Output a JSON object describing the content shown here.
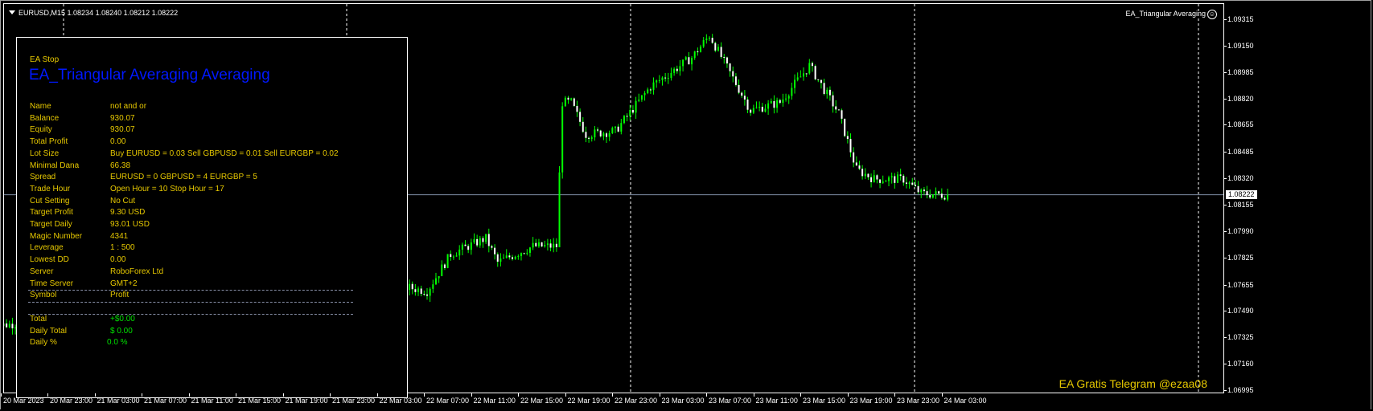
{
  "header": {
    "symbol": "EURUSD,M15",
    "ohlc": "1.08234 1.08240 1.08212 1.08222",
    "ea_name": "EA_Triangular Averaging",
    "ea_icon": "smiley-icon"
  },
  "panel": {
    "status": "EA Stop",
    "title": "EA_Triangular Averaging Averaging",
    "rows": [
      {
        "label": "Name",
        "value": "not and or"
      },
      {
        "label": "Balance",
        "value": "930.07"
      },
      {
        "label": "Equity",
        "value": "930.07"
      },
      {
        "label": "Total Profit",
        "value": "0.00"
      },
      {
        "label": "Lot Size",
        "value": "Buy EURUSD = 0.03    Sell GBPUSD = 0.01    Sell EURGBP = 0.02"
      },
      {
        "label": "Minimal Dana",
        "value": "66.38"
      },
      {
        "label": "Spread",
        "value": "EURUSD = 0   GBPUSD = 4   EURGBP = 5"
      },
      {
        "label": "Trade Hour",
        "value": "Open Hour = 10     Stop Hour = 17"
      },
      {
        "label": "Cut Setting",
        "value": "No Cut"
      },
      {
        "label": "Target Profit",
        "value": "9.30 USD"
      },
      {
        "label": "Target Daily",
        "value": "93.01 USD"
      },
      {
        "label": "Magic Number",
        "value": "4341"
      },
      {
        "label": "Leverage",
        "value": "1 : 500"
      },
      {
        "label": "Lowest DD",
        "value": "0.00"
      },
      {
        "label": "Server",
        "value": "RoboForex Ltd"
      },
      {
        "label": "Time Server",
        "value": "GMT+2"
      }
    ],
    "table_header": {
      "symbol": "Symbol",
      "profit": "Profit"
    },
    "totals": [
      {
        "label": "Total",
        "value": "+$0.00"
      },
      {
        "label": "Daily Total",
        "value": "$ 0.00"
      },
      {
        "label": "Daily %",
        "value": "0.0 %"
      }
    ]
  },
  "footer_text": "EA Gratis Telegram @ezaa08",
  "colors": {
    "background": "#000000",
    "bull": "#00ff00",
    "text_yellow": "#e6c800",
    "title_blue": "#0018ff",
    "profit_green": "#00e000",
    "bid_line": "#8090a8"
  },
  "chart_data": {
    "type": "candlestick",
    "symbol": "EURUSD",
    "timeframe": "M15",
    "current_price": "1.08222",
    "y_ticks": [
      "1.09315",
      "1.09150",
      "1.08985",
      "1.08820",
      "1.08655",
      "1.08485",
      "1.08320",
      "1.08155",
      "1.07990",
      "1.07825",
      "1.07655",
      "1.07490",
      "1.07325",
      "1.07160",
      "1.06995"
    ],
    "ylim": [
      1.06995,
      1.09315
    ],
    "x_ticks": [
      "20 Mar 2023",
      "20 Mar 23:00",
      "21 Mar 03:00",
      "21 Mar 07:00",
      "21 Mar 11:00",
      "21 Mar 15:00",
      "21 Mar 19:00",
      "21 Mar 23:00",
      "22 Mar 03:00",
      "22 Mar 07:00",
      "22 Mar 11:00",
      "22 Mar 15:00",
      "22 Mar 19:00",
      "22 Mar 23:00",
      "23 Mar 03:00",
      "23 Mar 07:00",
      "23 Mar 11:00",
      "23 Mar 15:00",
      "23 Mar 19:00",
      "23 Mar 23:00",
      "24 Mar 03:00"
    ],
    "close_path": [
      [
        "20 Mar 18:00",
        1.074
      ],
      [
        "22 Mar 04:00",
        1.0766
      ],
      [
        "22 Mar 07:00",
        1.0762
      ],
      [
        "22 Mar 09:00",
        1.0785
      ],
      [
        "22 Mar 12:00",
        1.0795
      ],
      [
        "22 Mar 13:00",
        1.078
      ],
      [
        "22 Mar 16:00",
        1.079
      ],
      [
        "22 Mar 18:00",
        1.079
      ],
      [
        "22 Mar 18:30",
        1.088
      ],
      [
        "22 Mar 19:15",
        1.088
      ],
      [
        "22 Mar 20:30",
        1.086
      ],
      [
        "22 Mar 23:00",
        1.0862
      ],
      [
        "23 Mar 02:00",
        1.089
      ],
      [
        "23 Mar 05:30",
        1.0908
      ],
      [
        "23 Mar 07:00",
        1.0922
      ],
      [
        "23 Mar 10:30",
        1.0875
      ],
      [
        "23 Mar 13:00",
        1.088
      ],
      [
        "23 Mar 15:30",
        1.0903
      ],
      [
        "23 Mar 17:00",
        1.0885
      ],
      [
        "23 Mar 18:00",
        1.0873
      ],
      [
        "23 Mar 19:30",
        1.0838
      ],
      [
        "23 Mar 21:00",
        1.0832
      ],
      [
        "23 Mar 23:30",
        1.0832
      ],
      [
        "24 Mar 01:00",
        1.0823
      ],
      [
        "24 Mar 03:15",
        1.0822
      ]
    ],
    "grid": false
  }
}
